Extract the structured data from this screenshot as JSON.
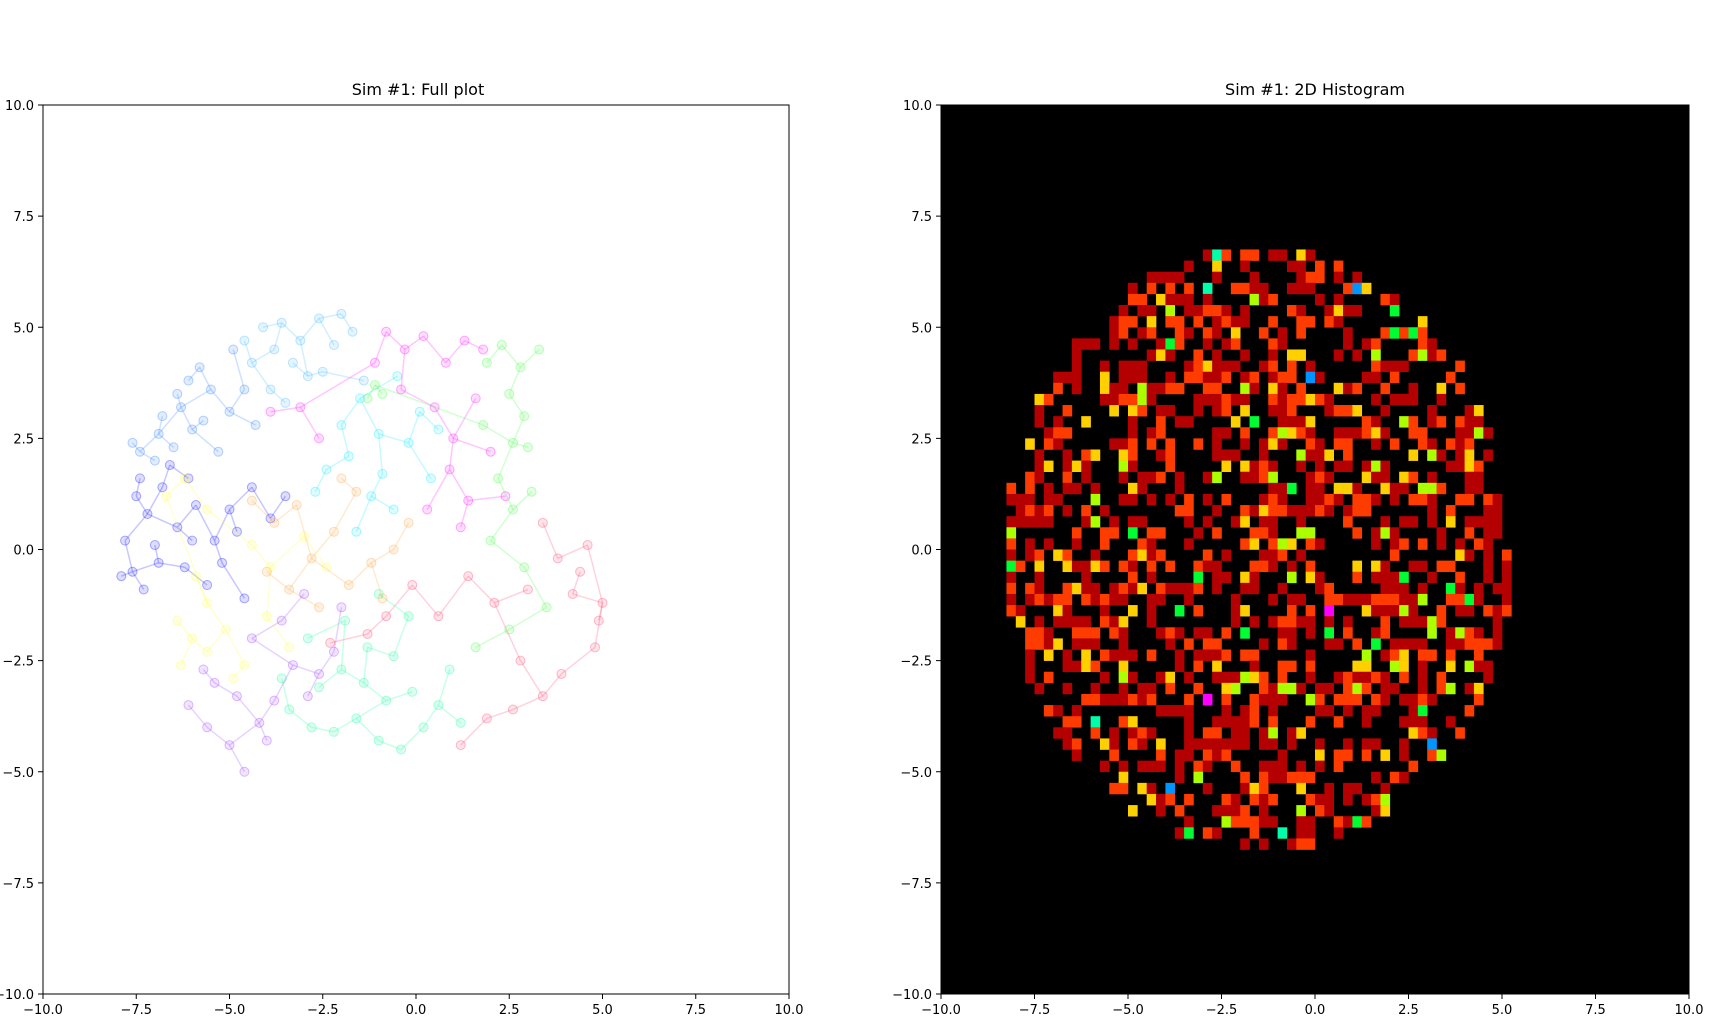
{
  "chart_data": [
    {
      "type": "scatter",
      "title": "Sim #1: Full plot",
      "xlabel": "",
      "ylabel": "",
      "xlim": [
        -10,
        10
      ],
      "ylim": [
        -10,
        10
      ],
      "xticks": [
        "−10.0",
        "−7.5",
        "−5.0",
        "−2.5",
        "0.0",
        "2.5",
        "5.0",
        "7.5",
        "10.0"
      ],
      "yticks": [
        "−10.0",
        "−7.5",
        "−5.0",
        "−2.5",
        "0.0",
        "2.5",
        "5.0",
        "7.5",
        "10.0"
      ],
      "grid": false,
      "marker": "o",
      "alpha": 0.22,
      "connected": true,
      "series": [
        {
          "color": "#0000ff",
          "points": [
            [
              -7.8,
              0.2
            ],
            [
              -7.6,
              -0.5
            ],
            [
              -7.2,
              0.8
            ],
            [
              -6.8,
              1.4
            ],
            [
              -6.4,
              0.5
            ],
            [
              -6.9,
              -0.3
            ],
            [
              -7.5,
              1.2
            ],
            [
              -6.2,
              -0.4
            ],
            [
              -5.9,
              1.0
            ],
            [
              -5.4,
              0.2
            ],
            [
              -5.0,
              0.9
            ],
            [
              -6.6,
              1.9
            ],
            [
              -7.3,
              -0.9
            ],
            [
              -5.6,
              -0.8
            ],
            [
              -4.8,
              0.4
            ],
            [
              -7.9,
              -0.6
            ],
            [
              -7.0,
              0.1
            ],
            [
              -6.1,
              1.6
            ],
            [
              -5.2,
              -0.3
            ],
            [
              -4.4,
              1.4
            ],
            [
              -3.9,
              0.7
            ],
            [
              -4.6,
              -1.1
            ],
            [
              -3.5,
              1.2
            ],
            [
              -7.4,
              1.6
            ],
            [
              -6.0,
              0.2
            ]
          ]
        },
        {
          "color": "#1e78ff",
          "points": [
            [
              -7.4,
              2.2
            ],
            [
              -6.9,
              2.6
            ],
            [
              -6.3,
              3.2
            ],
            [
              -7.0,
              2.0
            ],
            [
              -6.0,
              2.7
            ],
            [
              -5.5,
              3.6
            ],
            [
              -6.5,
              2.3
            ],
            [
              -5.0,
              3.1
            ],
            [
              -5.3,
              2.2
            ],
            [
              -4.6,
              3.6
            ],
            [
              -5.8,
              4.1
            ],
            [
              -6.8,
              3.0
            ],
            [
              -4.9,
              4.5
            ],
            [
              -6.1,
              3.8
            ],
            [
              -7.6,
              2.4
            ],
            [
              -5.7,
              2.9
            ],
            [
              -4.3,
              2.8
            ],
            [
              -6.4,
              3.5
            ]
          ]
        },
        {
          "color": "#34b4ff",
          "points": [
            [
              -3.6,
              5.1
            ],
            [
              -3.1,
              4.7
            ],
            [
              -2.6,
              5.2
            ],
            [
              -3.8,
              4.5
            ],
            [
              -4.1,
              5.0
            ],
            [
              -2.9,
              3.9
            ],
            [
              -3.3,
              4.2
            ],
            [
              -2.2,
              4.6
            ],
            [
              -4.4,
              4.2
            ],
            [
              -3.9,
              3.6
            ],
            [
              -2.0,
              5.3
            ],
            [
              -1.7,
              4.9
            ],
            [
              -2.5,
              4.0
            ],
            [
              -3.5,
              3.3
            ],
            [
              -4.6,
              4.7
            ],
            [
              -1.4,
              3.8
            ]
          ]
        },
        {
          "color": "#00e5ff",
          "points": [
            [
              -2.0,
              2.8
            ],
            [
              -1.5,
              3.4
            ],
            [
              -1.0,
              2.6
            ],
            [
              -0.5,
              3.9
            ],
            [
              -1.8,
              2.1
            ],
            [
              -0.9,
              1.7
            ],
            [
              -0.2,
              2.4
            ],
            [
              0.1,
              3.1
            ],
            [
              -1.2,
              1.2
            ],
            [
              -2.4,
              1.8
            ],
            [
              0.4,
              1.6
            ],
            [
              -0.6,
              0.9
            ],
            [
              -1.6,
              0.4
            ],
            [
              0.6,
              2.7
            ],
            [
              -2.7,
              1.3
            ]
          ]
        },
        {
          "color": "#ff00ff",
          "points": [
            [
              -0.8,
              4.9
            ],
            [
              -0.3,
              4.5
            ],
            [
              0.2,
              4.8
            ],
            [
              0.8,
              4.2
            ],
            [
              1.3,
              4.7
            ],
            [
              -0.4,
              3.6
            ],
            [
              0.5,
              3.2
            ],
            [
              1.0,
              2.5
            ],
            [
              1.6,
              3.4
            ],
            [
              1.8,
              4.5
            ],
            [
              0.9,
              1.8
            ],
            [
              1.4,
              1.1
            ],
            [
              2.0,
              2.2
            ],
            [
              -1.1,
              4.2
            ],
            [
              -3.1,
              3.2
            ],
            [
              -3.9,
              3.1
            ],
            [
              -2.6,
              2.5
            ],
            [
              0.3,
              0.9
            ],
            [
              1.2,
              0.5
            ],
            [
              2.4,
              1.2
            ]
          ]
        },
        {
          "color": "#32ff32",
          "points": [
            [
              1.9,
              4.2
            ],
            [
              2.3,
              4.6
            ],
            [
              2.8,
              4.1
            ],
            [
              3.3,
              4.5
            ],
            [
              2.5,
              3.5
            ],
            [
              2.9,
              3.0
            ],
            [
              2.6,
              2.4
            ],
            [
              3.0,
              2.3
            ],
            [
              1.8,
              2.8
            ],
            [
              -1.1,
              3.7
            ],
            [
              -0.9,
              3.5
            ],
            [
              -1.3,
              3.4
            ],
            [
              2.2,
              1.6
            ],
            [
              2.6,
              0.9
            ],
            [
              3.1,
              1.3
            ],
            [
              2.0,
              0.2
            ],
            [
              2.9,
              -0.4
            ],
            [
              3.5,
              -1.3
            ],
            [
              2.5,
              -1.8
            ],
            [
              1.6,
              -2.2
            ]
          ]
        },
        {
          "color": "#00ff96",
          "points": [
            [
              -3.4,
              -3.6
            ],
            [
              -2.8,
              -4.0
            ],
            [
              -2.2,
              -4.1
            ],
            [
              -1.6,
              -3.8
            ],
            [
              -1.0,
              -4.3
            ],
            [
              -0.4,
              -4.5
            ],
            [
              0.2,
              -4.0
            ],
            [
              -0.8,
              -3.4
            ],
            [
              -1.4,
              -3.0
            ],
            [
              -2.0,
              -2.7
            ],
            [
              -2.6,
              -3.1
            ],
            [
              -0.1,
              -3.2
            ],
            [
              0.6,
              -3.5
            ],
            [
              -1.9,
              -1.6
            ],
            [
              -1.3,
              -2.2
            ],
            [
              -0.6,
              -2.4
            ],
            [
              -2.9,
              -2.0
            ],
            [
              -3.6,
              -2.9
            ],
            [
              0.9,
              -2.7
            ],
            [
              1.2,
              -3.9
            ],
            [
              -0.2,
              -1.5
            ],
            [
              -1.0,
              -1.0
            ]
          ]
        },
        {
          "color": "#ff3264",
          "points": [
            [
              4.6,
              0.1
            ],
            [
              5.0,
              -1.2
            ],
            [
              4.8,
              -2.2
            ],
            [
              4.2,
              -1.0
            ],
            [
              3.8,
              -0.2
            ],
            [
              3.4,
              0.6
            ],
            [
              3.9,
              -2.8
            ],
            [
              3.4,
              -3.3
            ],
            [
              2.6,
              -3.6
            ],
            [
              1.9,
              -3.8
            ],
            [
              1.2,
              -4.4
            ],
            [
              2.8,
              -2.5
            ],
            [
              2.1,
              -1.2
            ],
            [
              1.4,
              -0.6
            ],
            [
              0.6,
              -1.5
            ],
            [
              -0.1,
              -0.8
            ],
            [
              -0.8,
              -1.5
            ],
            [
              -1.3,
              -1.9
            ],
            [
              -2.3,
              -2.1
            ],
            [
              4.9,
              -1.6
            ],
            [
              4.4,
              -0.5
            ],
            [
              3.0,
              -0.9
            ]
          ]
        },
        {
          "color": "#ffff32",
          "points": [
            [
              -6.4,
              -1.6
            ],
            [
              -6.0,
              -2.0
            ],
            [
              -6.3,
              -2.6
            ],
            [
              -5.6,
              -2.3
            ],
            [
              -5.1,
              -1.8
            ],
            [
              -4.6,
              -2.6
            ],
            [
              -5.6,
              -1.2
            ],
            [
              -6.7,
              1.2
            ],
            [
              -6.2,
              1.6
            ],
            [
              -5.6,
              0.9
            ],
            [
              -4.4,
              0.1
            ],
            [
              -3.9,
              -0.4
            ],
            [
              -4.9,
              -2.9
            ],
            [
              -4.0,
              -1.5
            ],
            [
              -3.4,
              -2.2
            ],
            [
              -5.9,
              -0.6
            ],
            [
              -3.0,
              0.3
            ],
            [
              -2.4,
              -0.4
            ]
          ]
        },
        {
          "color": "#ffa032",
          "points": [
            [
              -4.4,
              1.1
            ],
            [
              -3.8,
              0.6
            ],
            [
              -3.2,
              1.0
            ],
            [
              -2.8,
              -0.2
            ],
            [
              -2.2,
              0.4
            ],
            [
              -1.8,
              -0.8
            ],
            [
              -1.2,
              -0.3
            ],
            [
              -3.4,
              -0.9
            ],
            [
              -2.6,
              -1.3
            ],
            [
              -0.6,
              0.0
            ],
            [
              -0.2,
              0.6
            ],
            [
              -1.6,
              1.3
            ],
            [
              -4.0,
              -0.5
            ],
            [
              -2.0,
              1.6
            ],
            [
              -0.9,
              -1.1
            ]
          ]
        },
        {
          "color": "#9632ff",
          "points": [
            [
              -6.1,
              -3.5
            ],
            [
              -5.6,
              -4.0
            ],
            [
              -5.0,
              -4.4
            ],
            [
              -4.6,
              -5.0
            ],
            [
              -4.2,
              -3.9
            ],
            [
              -4.8,
              -3.3
            ],
            [
              -5.4,
              -3.0
            ],
            [
              -3.8,
              -3.4
            ],
            [
              -3.3,
              -2.6
            ],
            [
              -2.6,
              -2.8
            ],
            [
              -2.2,
              -2.3
            ],
            [
              -4.4,
              -2.0
            ],
            [
              -3.6,
              -1.6
            ],
            [
              -5.7,
              -2.7
            ],
            [
              -4.0,
              -4.3
            ],
            [
              -2.9,
              -3.3
            ],
            [
              -3.0,
              -1.0
            ],
            [
              -2.0,
              -1.3
            ]
          ]
        }
      ]
    },
    {
      "type": "heatmap",
      "title": "Sim #1: 2D Histogram",
      "xlabel": "",
      "ylabel": "",
      "xlim": [
        -10,
        10
      ],
      "ylim": [
        -10,
        10
      ],
      "xticks": [
        "−10.0",
        "−7.5",
        "−5.0",
        "−2.5",
        "0.0",
        "2.5",
        "5.0",
        "7.5",
        "10.0"
      ],
      "yticks": [
        "10.0",
        "7.5",
        "5.0",
        "2.5",
        "0.0",
        "−2.5",
        "−5.0",
        "−7.5",
        "−10.0"
      ],
      "bins": 80,
      "colormap": "gist_ncar-like",
      "background": "#000000",
      "palette": [
        "#000000",
        "#b40000",
        "#ff3c00",
        "#ffd000",
        "#aaff00",
        "#00ff32",
        "#00ffaa",
        "#0096ff",
        "#ff00ff"
      ],
      "note_levels": "counts 1..8 mapped to palette[1..8]",
      "center": [
        -1.5,
        0.0
      ],
      "radius": 6.8,
      "seed": 12345
    }
  ]
}
